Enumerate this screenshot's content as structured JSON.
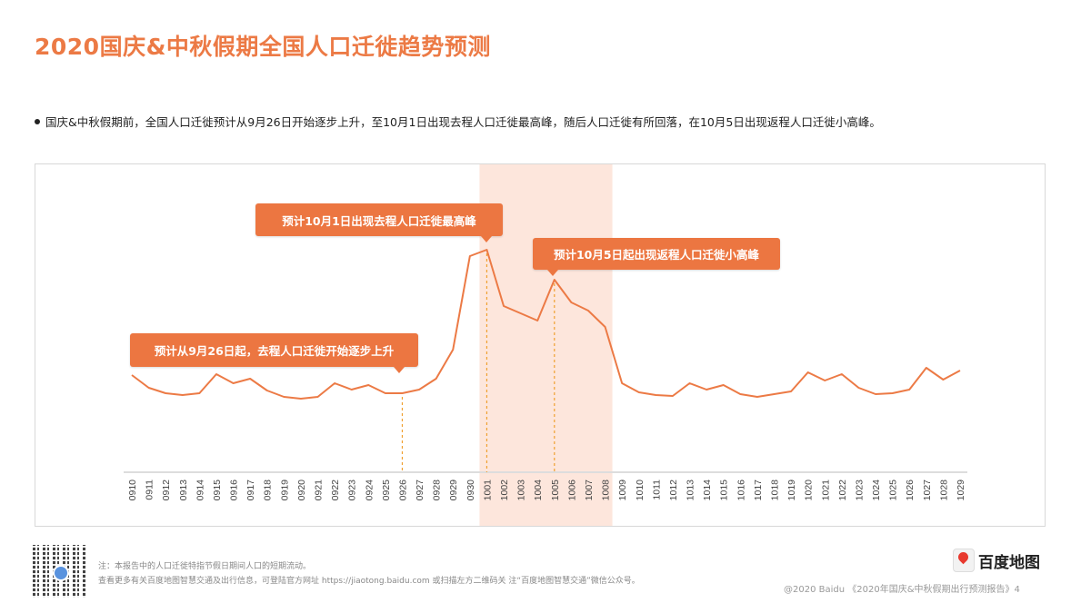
{
  "title": "2020国庆&中秋假期全国人口迁徙趋势预测",
  "summary": "国庆&中秋假期前，全国人口迁徙预计从9月26日开始逐步上升，至10月1日出现去程人口迁徙最高峰，随后人口迁徙有所回落，在10月5日出现返程人口迁徙小高峰。",
  "annotations": {
    "start": "预计从9月26日起，去程人口迁徙开始逐步上升",
    "peak": "预计10月1日出现去程人口迁徙最高峰",
    "return": "预计10月5日起出现返程人口迁徙小高峰"
  },
  "chart_data": {
    "type": "line",
    "title": "2020国庆&中秋假期全国人口迁徙趋势预测",
    "xlabel": "",
    "ylabel": "",
    "y_axis_shown": false,
    "y_units": "relative index (no scale shown)",
    "categories": [
      "0910",
      "0911",
      "0912",
      "0913",
      "0914",
      "0915",
      "0916",
      "0917",
      "0918",
      "0919",
      "0920",
      "0921",
      "0922",
      "0923",
      "0924",
      "0925",
      "0926",
      "0927",
      "0928",
      "0929",
      "0930",
      "1001",
      "1002",
      "1003",
      "1004",
      "1005",
      "1006",
      "1007",
      "1008",
      "1009",
      "1010",
      "1011",
      "1012",
      "1013",
      "1014",
      "1015",
      "1016",
      "1017",
      "1018",
      "1019",
      "1020",
      "1021",
      "1022",
      "1023",
      "1024",
      "1025",
      "1026",
      "1027",
      "1028",
      "1029"
    ],
    "series": [
      {
        "name": "人口迁徙",
        "color": "#ec7a45",
        "values": [
          107,
          93,
          87,
          85,
          87,
          108,
          98,
          103,
          90,
          83,
          81,
          83,
          98,
          91,
          96,
          87,
          87,
          91,
          103,
          135,
          238,
          245,
          183,
          175,
          167,
          212,
          187,
          178,
          160,
          98,
          88,
          85,
          84,
          98,
          91,
          96,
          86,
          83,
          86,
          89,
          110,
          101,
          108,
          93,
          86,
          87,
          91,
          115,
          102,
          112
        ]
      }
    ],
    "highlight_range": [
      "1001",
      "1008"
    ],
    "markers": [
      "0926",
      "1001",
      "1005"
    ],
    "highlight_color": "#fde6dc"
  },
  "footer": {
    "note1": "注：本报告中的人口迁徙特指节假日期间人口的短期流动。",
    "note2": "查看更多有关百度地图智慧交通及出行信息，可登陆官方网址 https://jiaotong.baidu.com 或扫描左方二维码关 注“百度地图智慧交通”微信公众号。",
    "logo": "百度地图",
    "credit": "@2020 Baidu 《2020年国庆&中秋假期出行预测报告》4"
  }
}
